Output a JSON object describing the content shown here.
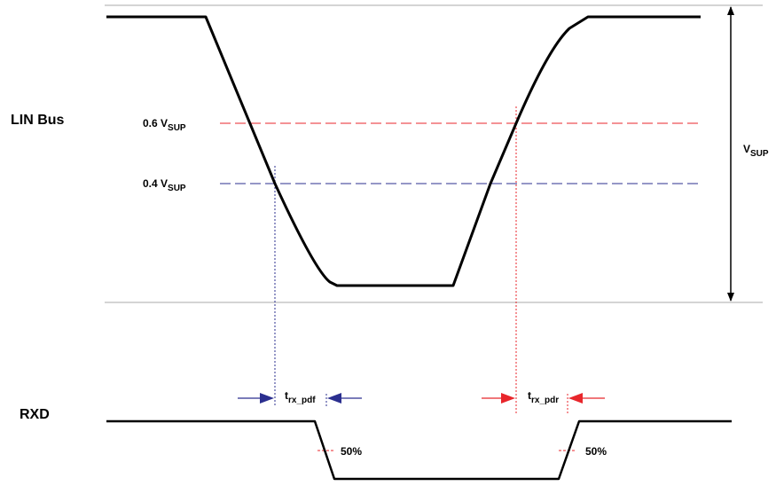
{
  "signals": {
    "lin_bus": "LIN Bus",
    "rxd": "RXD"
  },
  "thresholds": {
    "high": {
      "prefix": "0.6 V",
      "sub": "SUP",
      "color": "#e8262b"
    },
    "low": {
      "prefix": "0.4 V",
      "sub": "SUP",
      "color": "#2b2f8f"
    }
  },
  "supply": {
    "main": "V",
    "sub": "SUP"
  },
  "delays": {
    "fall": {
      "main": "t",
      "sub": "rx_pdf",
      "color": "#2b2f8f"
    },
    "rise": {
      "main": "t",
      "sub": "rx_pdr",
      "color": "#e8262b"
    }
  },
  "midpoints": {
    "fall": "50%",
    "rise": "50%"
  },
  "colors": {
    "waveform": "#000000",
    "reference_line": "#a8a8a8"
  }
}
